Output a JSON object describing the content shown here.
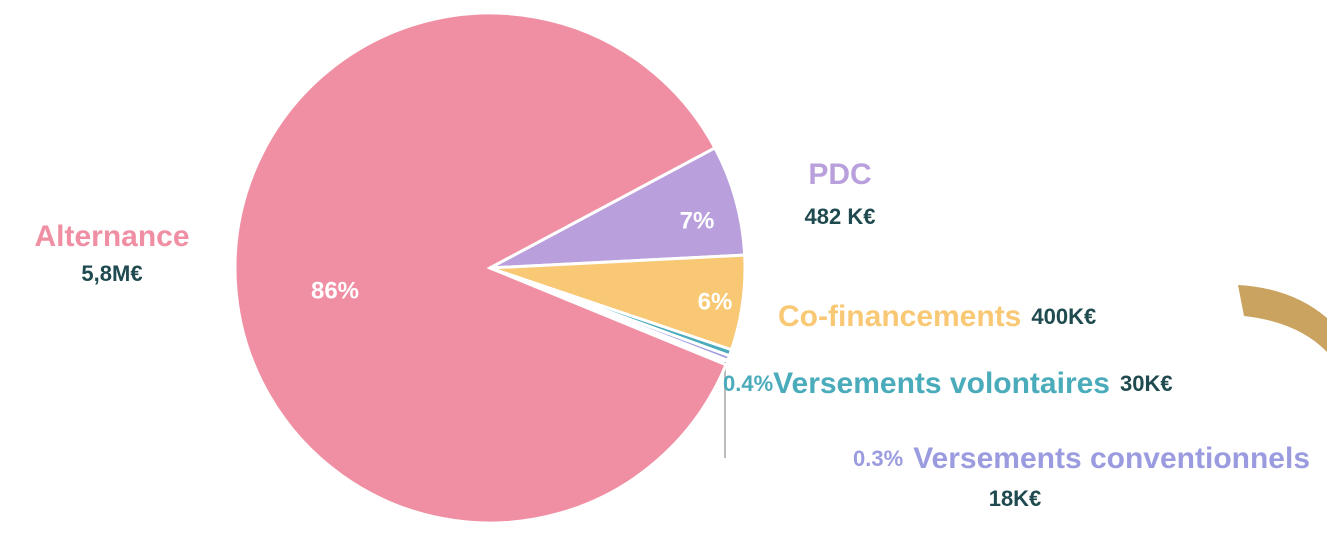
{
  "chart_data": {
    "type": "pie",
    "categories": [
      "Alternance",
      "PDC",
      "Co-financements",
      "Versements volontaires",
      "Versements conventionnels"
    ],
    "values": [
      86,
      7,
      6,
      0.4,
      0.3
    ],
    "value_labels": [
      "86%",
      "7%",
      "6%",
      "0.4%",
      "0.3%"
    ],
    "amounts": [
      "5,8M€",
      "482 K€",
      "400K€",
      "30K€",
      "18K€"
    ],
    "colors": [
      "#f08fa3",
      "#b9a0dd",
      "#f9c874",
      "#4aabbb",
      "#9b9be0"
    ]
  }
}
